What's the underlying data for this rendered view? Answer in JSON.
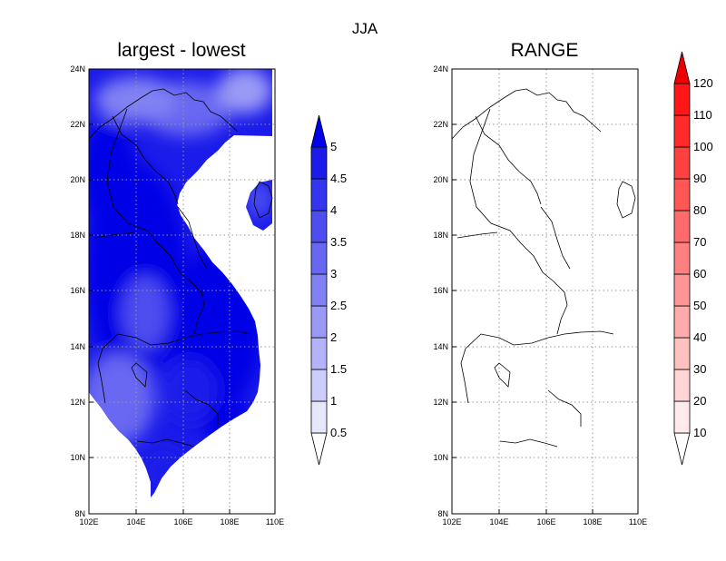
{
  "title": "JJA",
  "panels": [
    {
      "title": "largest - lowest",
      "colorbar_labels": [
        "0.5",
        "1",
        "1.5",
        "2",
        "2.5",
        "3",
        "3.5",
        "4",
        "4.5",
        "5"
      ],
      "palette": [
        "#ffffff",
        "#e6e6fd",
        "#cdcdfb",
        "#b3b3f9",
        "#9a9af6",
        "#8181f4",
        "#6767f2",
        "#4e4ef0",
        "#3535ed",
        "#1b1bea",
        "#0000e6"
      ],
      "accent": "#0000e6"
    },
    {
      "title": "RANGE",
      "colorbar_labels": [
        "10",
        "20",
        "30",
        "40",
        "50",
        "60",
        "70",
        "80",
        "90",
        "100",
        "110",
        "120"
      ],
      "palette": [
        "#ffffff",
        "#ffebeb",
        "#ffd5d5",
        "#ffc0c0",
        "#ffabab",
        "#ff9696",
        "#ff8080",
        "#ff6b6b",
        "#ff5656",
        "#ff4141",
        "#ff2b2b",
        "#ff1616",
        "#ee0000"
      ],
      "accent": "#ee0000"
    }
  ],
  "axes": {
    "lat_labels": [
      "24N",
      "22N",
      "20N",
      "18N",
      "16N",
      "14N",
      "12N",
      "10N",
      "8N"
    ],
    "lon_labels": [
      "102E",
      "104E",
      "106E",
      "108E",
      "110E"
    ]
  }
}
